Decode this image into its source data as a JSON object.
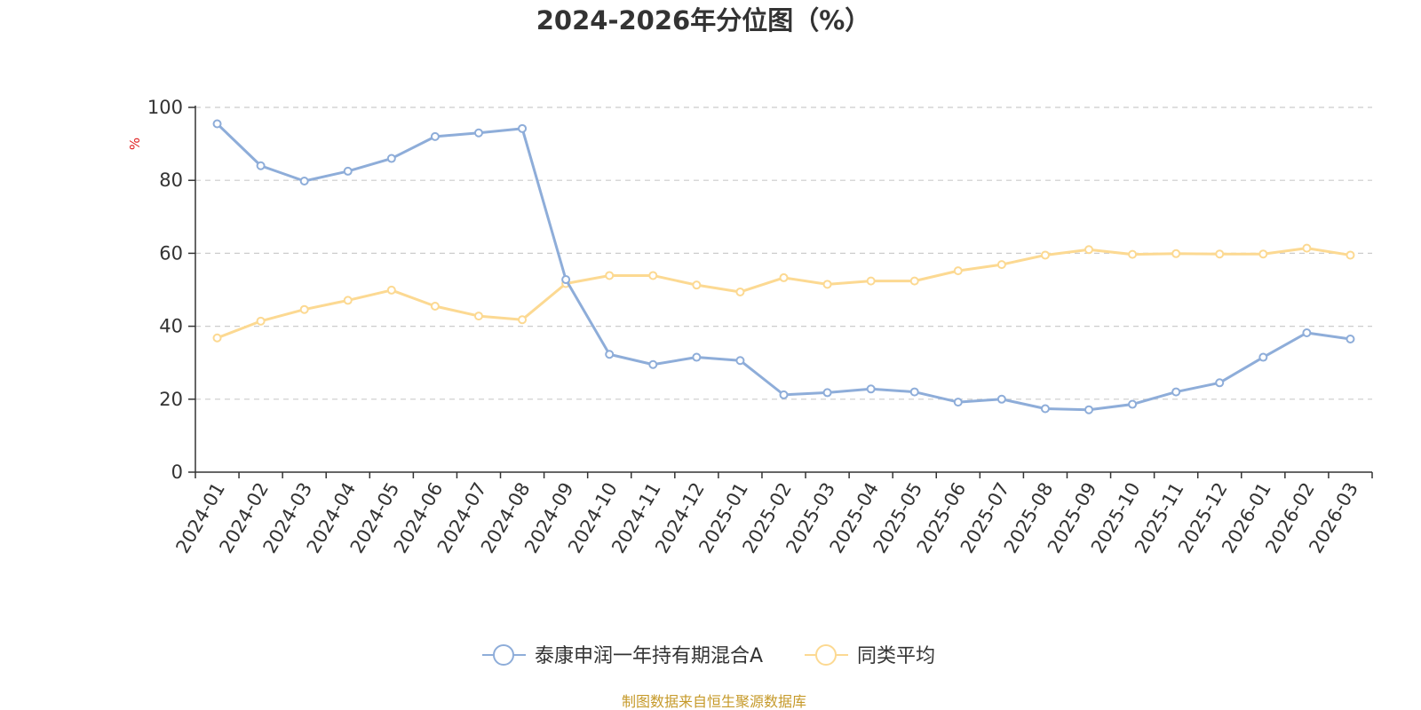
{
  "chart_data": {
    "type": "line",
    "title": "2024-2026年分位图（%）",
    "ylabel": "%",
    "ylim": [
      0,
      100
    ],
    "yticks": [
      0,
      20,
      40,
      60,
      80,
      100
    ],
    "grid": true,
    "legend_position": "bottom-center",
    "categories": [
      "2024-01",
      "2024-02",
      "2024-03",
      "2024-04",
      "2024-05",
      "2024-06",
      "2024-07",
      "2024-08",
      "2024-09",
      "2024-10",
      "2024-11",
      "2024-12",
      "2025-01",
      "2025-02",
      "2025-03",
      "2025-04",
      "2025-05",
      "2025-06",
      "2025-07",
      "2025-08",
      "2025-09",
      "2025-10",
      "2025-11",
      "2025-12",
      "2026-01",
      "2026-02",
      "2026-03"
    ],
    "series": [
      {
        "name": "泰康申润一年持有期混合A",
        "color": "#8eadd9",
        "values": [
          95.5,
          84.0,
          79.8,
          82.5,
          86.0,
          92.0,
          93.0,
          94.2,
          52.8,
          32.3,
          29.5,
          31.5,
          30.6,
          21.2,
          21.8,
          22.8,
          22.0,
          19.2,
          20.0,
          17.4,
          17.1,
          18.6,
          22.0,
          24.5,
          31.5,
          38.2,
          36.5
        ]
      },
      {
        "name": "同类平均",
        "color": "#fcd992",
        "values": [
          36.8,
          41.4,
          44.6,
          47.1,
          49.9,
          45.5,
          42.8,
          41.8,
          51.7,
          53.9,
          53.9,
          51.3,
          49.4,
          53.3,
          51.5,
          52.4,
          52.4,
          55.2,
          56.9,
          59.5,
          61.0,
          59.7,
          59.9,
          59.8,
          59.8,
          61.4,
          59.5
        ]
      }
    ]
  },
  "colors": {
    "axis": "#333333",
    "grid": "#cccccc",
    "unit_label": "#e02020",
    "source_text": "#c69a2a"
  },
  "source": "制图数据来自恒生聚源数据库"
}
